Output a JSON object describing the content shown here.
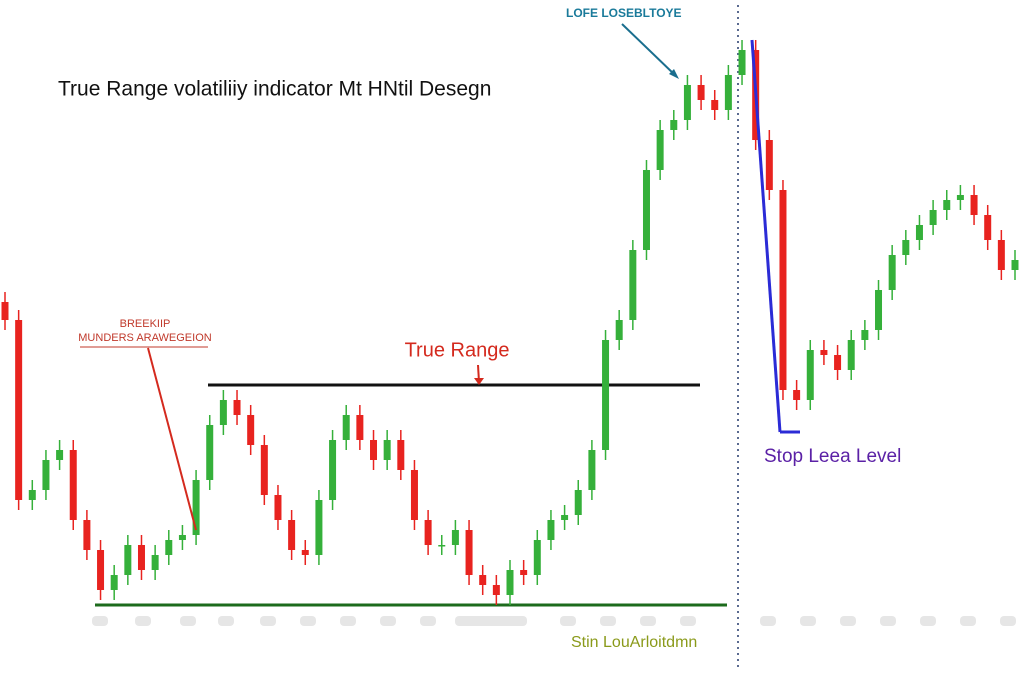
{
  "chart_data": {
    "type": "candlestick",
    "title": "True Range volatiliiy indicator Mt HNtil Desegn",
    "annotations": [
      "LOFE LOSEBLTOYE",
      "BREEKIIP",
      "MUNDERS ARAWEGEION",
      "True Range",
      "Stop Leea Level",
      "Stin LouArloitdmn"
    ],
    "up_color": "#35b03a",
    "down_color": "#e8231f",
    "ylim": [
      0,
      68.2
    ],
    "levels": [
      {
        "value": 29.7,
        "color": "#111111"
      },
      {
        "value": 7.7,
        "color": "#1d6b1d"
      },
      {
        "value": 25.0,
        "color": "#2b2bd6"
      }
    ],
    "open": [
      38.0,
      36.2,
      18.2,
      19.2,
      22.2,
      23.2,
      16.2,
      13.2,
      9.2,
      10.7,
      13.7,
      11.2,
      12.7,
      14.2,
      14.7,
      20.2,
      25.7,
      28.2,
      26.7,
      23.7,
      18.7,
      16.2,
      13.2,
      12.7,
      18.2,
      24.2,
      26.7,
      24.2,
      22.2,
      24.2,
      21.2,
      16.2,
      13.7,
      13.7,
      15.2,
      10.7,
      9.7,
      8.7,
      11.2,
      10.7,
      14.2,
      16.2,
      16.7,
      19.2,
      23.2,
      34.2,
      36.2,
      43.2,
      51.2,
      55.2,
      56.2,
      59.7,
      58.2,
      57.2,
      60.7,
      63.2,
      54.2,
      49.2,
      29.2,
      28.2,
      33.2,
      32.7,
      31.2,
      34.2,
      35.2,
      39.2,
      42.7,
      44.2,
      45.7,
      47.2,
      48.2,
      48.7,
      46.7,
      44.2,
      41.2
    ],
    "high": [
      39.0,
      37.2,
      20.2,
      23.2,
      24.2,
      24.2,
      17.2,
      14.2,
      11.7,
      14.7,
      14.7,
      13.7,
      15.2,
      15.7,
      21.2,
      26.7,
      29.2,
      29.2,
      27.7,
      24.7,
      19.7,
      17.2,
      14.2,
      19.2,
      25.2,
      27.7,
      27.7,
      25.2,
      25.2,
      25.2,
      22.2,
      17.2,
      14.7,
      16.2,
      16.2,
      11.7,
      10.7,
      12.2,
      12.2,
      15.2,
      17.2,
      17.7,
      20.2,
      24.2,
      35.2,
      37.2,
      44.2,
      52.2,
      56.2,
      57.2,
      60.7,
      60.7,
      59.2,
      61.7,
      64.2,
      64.2,
      55.2,
      50.2,
      30.2,
      34.2,
      34.2,
      33.7,
      35.2,
      36.2,
      40.2,
      43.7,
      45.2,
      46.7,
      48.2,
      49.2,
      49.7,
      49.7,
      47.7,
      45.2,
      43.2
    ],
    "low": [
      35.2,
      17.2,
      17.2,
      18.2,
      21.2,
      15.2,
      12.2,
      8.2,
      8.2,
      9.7,
      10.2,
      10.2,
      11.7,
      13.2,
      13.7,
      19.2,
      24.7,
      25.7,
      22.7,
      17.7,
      15.2,
      12.2,
      11.7,
      11.7,
      17.2,
      23.2,
      23.2,
      21.2,
      21.2,
      20.2,
      15.2,
      12.7,
      12.7,
      12.7,
      9.7,
      8.7,
      7.7,
      7.7,
      9.7,
      9.7,
      13.2,
      15.2,
      15.7,
      18.2,
      22.2,
      33.2,
      35.2,
      42.2,
      50.2,
      54.2,
      55.2,
      57.2,
      56.2,
      56.2,
      59.7,
      53.2,
      48.2,
      28.2,
      27.2,
      27.2,
      31.7,
      30.2,
      30.2,
      33.2,
      34.2,
      38.2,
      41.7,
      43.2,
      44.7,
      46.2,
      47.2,
      45.7,
      43.2,
      40.2,
      40.2
    ],
    "close": [
      36.2,
      18.2,
      19.2,
      22.2,
      23.2,
      16.2,
      13.2,
      9.2,
      10.7,
      13.7,
      11.2,
      12.7,
      14.2,
      14.7,
      20.2,
      25.7,
      28.2,
      26.7,
      23.7,
      18.7,
      16.2,
      13.2,
      12.7,
      18.2,
      24.2,
      26.7,
      24.2,
      22.2,
      24.2,
      21.2,
      16.2,
      13.7,
      13.7,
      15.2,
      10.7,
      9.7,
      8.7,
      11.2,
      10.7,
      14.2,
      16.2,
      16.7,
      19.2,
      23.2,
      34.2,
      36.2,
      43.2,
      51.2,
      55.2,
      56.2,
      59.7,
      58.2,
      57.2,
      60.7,
      63.2,
      54.2,
      49.2,
      29.2,
      28.2,
      33.2,
      32.7,
      31.2,
      34.2,
      35.2,
      39.2,
      42.7,
      44.2,
      45.7,
      47.2,
      48.2,
      48.7,
      46.7,
      44.2,
      41.2,
      42.2
    ]
  }
}
